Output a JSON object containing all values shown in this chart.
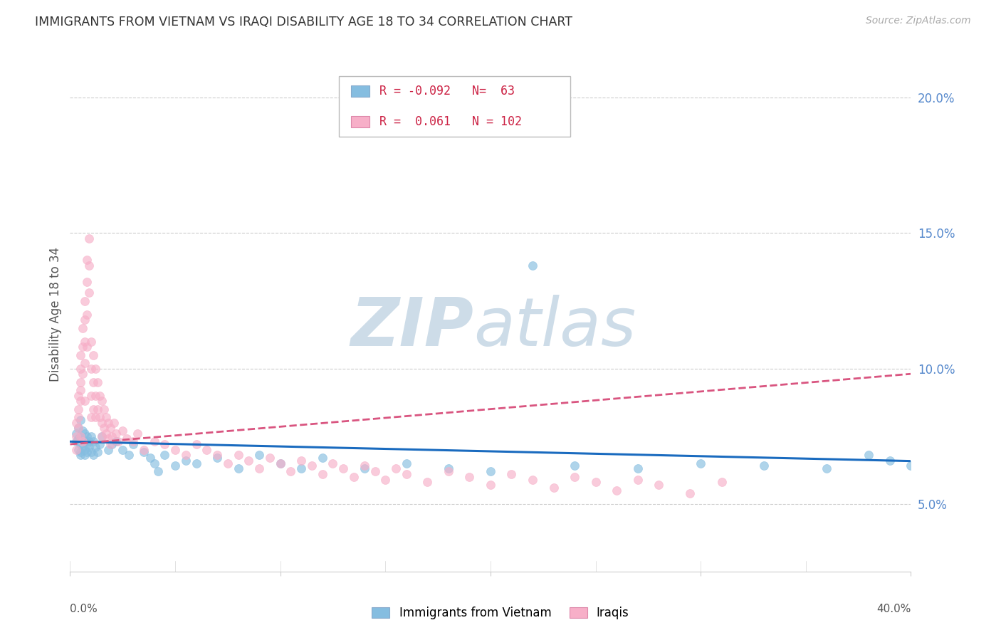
{
  "title": "IMMIGRANTS FROM VIETNAM VS IRAQI DISABILITY AGE 18 TO 34 CORRELATION CHART",
  "source": "Source: ZipAtlas.com",
  "ylabel": "Disability Age 18 to 34",
  "ytick_labels": [
    "5.0%",
    "10.0%",
    "15.0%",
    "20.0%"
  ],
  "ytick_values": [
    0.05,
    0.1,
    0.15,
    0.2
  ],
  "xlim": [
    0.0,
    0.4
  ],
  "ylim": [
    0.025,
    0.215
  ],
  "legend_labels": [
    "Immigrants from Vietnam",
    "Iraqis"
  ],
  "R_vietnam": -0.092,
  "N_vietnam": 63,
  "R_iraqi": 0.061,
  "N_iraqi": 102,
  "color_vietnam": "#85bde0",
  "color_iraqi": "#f7afc8",
  "trendline_color_vietnam": "#1a6bbf",
  "trendline_color_iraqi": "#d95580",
  "watermark_color": "#cddce8",
  "background_color": "#ffffff",
  "grid_color": "#cccccc",
  "right_tick_color": "#5588cc",
  "legend_R_N_color": "#cc2244",
  "vietnam_x": [
    0.003,
    0.003,
    0.004,
    0.004,
    0.004,
    0.005,
    0.005,
    0.005,
    0.005,
    0.005,
    0.006,
    0.006,
    0.006,
    0.007,
    0.007,
    0.007,
    0.007,
    0.008,
    0.008,
    0.008,
    0.009,
    0.009,
    0.01,
    0.01,
    0.011,
    0.011,
    0.012,
    0.013,
    0.014,
    0.015,
    0.018,
    0.02,
    0.022,
    0.025,
    0.028,
    0.03,
    0.035,
    0.038,
    0.04,
    0.042,
    0.045,
    0.05,
    0.055,
    0.06,
    0.07,
    0.08,
    0.09,
    0.1,
    0.11,
    0.12,
    0.14,
    0.16,
    0.18,
    0.2,
    0.22,
    0.24,
    0.27,
    0.3,
    0.33,
    0.36,
    0.38,
    0.39,
    0.4
  ],
  "vietnam_y": [
    0.073,
    0.076,
    0.07,
    0.074,
    0.078,
    0.069,
    0.072,
    0.075,
    0.068,
    0.081,
    0.071,
    0.074,
    0.077,
    0.07,
    0.073,
    0.076,
    0.068,
    0.072,
    0.075,
    0.069,
    0.073,
    0.071,
    0.075,
    0.069,
    0.073,
    0.068,
    0.071,
    0.069,
    0.072,
    0.075,
    0.07,
    0.072,
    0.073,
    0.07,
    0.068,
    0.072,
    0.069,
    0.067,
    0.065,
    0.062,
    0.068,
    0.064,
    0.066,
    0.065,
    0.067,
    0.063,
    0.068,
    0.065,
    0.063,
    0.067,
    0.063,
    0.065,
    0.063,
    0.062,
    0.138,
    0.064,
    0.063,
    0.065,
    0.064,
    0.063,
    0.068,
    0.066,
    0.064
  ],
  "iraqi_x": [
    0.003,
    0.003,
    0.003,
    0.004,
    0.004,
    0.004,
    0.004,
    0.005,
    0.005,
    0.005,
    0.005,
    0.005,
    0.005,
    0.006,
    0.006,
    0.006,
    0.006,
    0.007,
    0.007,
    0.007,
    0.007,
    0.007,
    0.008,
    0.008,
    0.008,
    0.008,
    0.009,
    0.009,
    0.009,
    0.01,
    0.01,
    0.01,
    0.01,
    0.011,
    0.011,
    0.011,
    0.012,
    0.012,
    0.012,
    0.013,
    0.013,
    0.014,
    0.014,
    0.015,
    0.015,
    0.015,
    0.016,
    0.016,
    0.017,
    0.017,
    0.018,
    0.018,
    0.019,
    0.019,
    0.02,
    0.021,
    0.022,
    0.023,
    0.025,
    0.027,
    0.03,
    0.032,
    0.035,
    0.04,
    0.045,
    0.05,
    0.055,
    0.06,
    0.065,
    0.07,
    0.075,
    0.08,
    0.085,
    0.09,
    0.095,
    0.1,
    0.105,
    0.11,
    0.115,
    0.12,
    0.125,
    0.13,
    0.135,
    0.14,
    0.145,
    0.15,
    0.155,
    0.16,
    0.17,
    0.18,
    0.19,
    0.2,
    0.21,
    0.22,
    0.23,
    0.24,
    0.25,
    0.26,
    0.27,
    0.28,
    0.295,
    0.31
  ],
  "iraqi_y": [
    0.075,
    0.08,
    0.07,
    0.085,
    0.078,
    0.09,
    0.082,
    0.095,
    0.1,
    0.088,
    0.105,
    0.092,
    0.075,
    0.115,
    0.108,
    0.098,
    0.073,
    0.125,
    0.118,
    0.11,
    0.102,
    0.088,
    0.14,
    0.132,
    0.12,
    0.108,
    0.148,
    0.138,
    0.128,
    0.11,
    0.1,
    0.09,
    0.082,
    0.105,
    0.095,
    0.085,
    0.1,
    0.09,
    0.082,
    0.095,
    0.085,
    0.09,
    0.082,
    0.088,
    0.08,
    0.075,
    0.085,
    0.078,
    0.082,
    0.076,
    0.08,
    0.074,
    0.078,
    0.072,
    0.075,
    0.08,
    0.076,
    0.073,
    0.077,
    0.074,
    0.073,
    0.076,
    0.07,
    0.073,
    0.072,
    0.07,
    0.068,
    0.072,
    0.07,
    0.068,
    0.065,
    0.068,
    0.066,
    0.063,
    0.067,
    0.065,
    0.062,
    0.066,
    0.064,
    0.061,
    0.065,
    0.063,
    0.06,
    0.064,
    0.062,
    0.059,
    0.063,
    0.061,
    0.058,
    0.062,
    0.06,
    0.057,
    0.061,
    0.059,
    0.056,
    0.06,
    0.058,
    0.055,
    0.059,
    0.057,
    0.054,
    0.058
  ]
}
